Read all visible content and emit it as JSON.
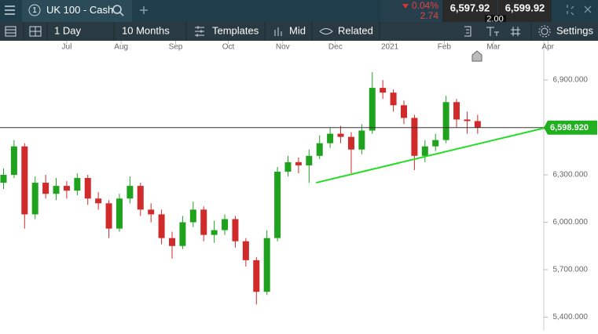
{
  "header": {
    "instrument_number": "1",
    "instrument": "UK 100 - Cash",
    "change_percent": "0.04%",
    "change_points": "2.74",
    "sell_price": "6,597.92",
    "spread": "2.00",
    "buy_price": "6,599.92"
  },
  "toolbar": {
    "interval": "1 Day",
    "range": "10 Months",
    "templates": "Templates",
    "price_type": "Mid",
    "related": "Related",
    "settings": "Settings"
  },
  "chart_data": {
    "type": "candlestick",
    "up_color": "#1fa31f",
    "down_color": "#d02a2a",
    "x": [
      -36,
      -30,
      -24,
      -18,
      -12,
      -6,
      0,
      6,
      12,
      18,
      24,
      30,
      36,
      42,
      48,
      54,
      60,
      66,
      72,
      78,
      84,
      90,
      96,
      102,
      108,
      114,
      120,
      126,
      132,
      138,
      144,
      150,
      156,
      162,
      168,
      174,
      180,
      186,
      192,
      198,
      204,
      210,
      216,
      222,
      228,
      234
    ],
    "open": [
      6250,
      6300,
      6480,
      6050,
      6250,
      6180,
      6230,
      6200,
      6280,
      6150,
      6120,
      5960,
      6150,
      6230,
      6080,
      6050,
      5900,
      5850,
      6000,
      6080,
      5920,
      5950,
      6020,
      5880,
      5760,
      5560,
      5900,
      6320,
      6380,
      6360,
      6420,
      6500,
      6560,
      6540,
      6460,
      6580,
      6850,
      6820,
      6740,
      6660,
      6420,
      6480,
      6520,
      6760,
      6650,
      6640
    ],
    "high": [
      6340,
      6520,
      6500,
      6290,
      6300,
      6280,
      6260,
      6310,
      6300,
      6190,
      6140,
      6180,
      6290,
      6250,
      6120,
      6080,
      5940,
      6040,
      6130,
      6100,
      6010,
      6050,
      6040,
      5900,
      5780,
      5950,
      6350,
      6420,
      6410,
      6460,
      6550,
      6600,
      6610,
      6570,
      6620,
      6950,
      6900,
      6840,
      6770,
      6680,
      6520,
      6560,
      6800,
      6780,
      6700,
      6680
    ],
    "low": [
      6210,
      6280,
      5960,
      6020,
      6150,
      6140,
      6150,
      6170,
      6110,
      6080,
      5900,
      5940,
      6120,
      6040,
      6000,
      5860,
      5770,
      5830,
      5970,
      5880,
      5870,
      5920,
      5840,
      5720,
      5480,
      5540,
      5880,
      6290,
      6310,
      6250,
      6400,
      6470,
      6500,
      6310,
      6430,
      6560,
      6780,
      6700,
      6620,
      6330,
      6380,
      6450,
      6500,
      6600,
      6560,
      6560
    ],
    "close": [
      6300,
      6480,
      6050,
      6250,
      6180,
      6230,
      6200,
      6280,
      6150,
      6120,
      5960,
      6150,
      6230,
      6080,
      6050,
      5900,
      5850,
      6000,
      6080,
      5920,
      5950,
      6020,
      5880,
      5760,
      5560,
      5900,
      6320,
      6380,
      6360,
      6420,
      6500,
      6560,
      6540,
      6460,
      6580,
      6850,
      6820,
      6740,
      6660,
      6420,
      6480,
      6520,
      6760,
      6650,
      6640,
      6598.92
    ],
    "xlim": [
      -38,
      273
    ],
    "xticks": [
      {
        "value": 0,
        "label": "Jul"
      },
      {
        "value": 31,
        "label": "Aug"
      },
      {
        "value": 62,
        "label": "Sep"
      },
      {
        "value": 92,
        "label": "Oct"
      },
      {
        "value": 123,
        "label": "Nov"
      },
      {
        "value": 153,
        "label": "Dec"
      },
      {
        "value": 184,
        "label": "2021"
      },
      {
        "value": 215,
        "label": "Feb"
      },
      {
        "value": 243,
        "label": "Mar"
      },
      {
        "value": 274,
        "label": "Apr"
      }
    ],
    "ylim": [
      5318,
      7148
    ],
    "yticks": [
      {
        "value": 5400,
        "label": "5,400.000"
      },
      {
        "value": 5700,
        "label": "5,700.000"
      },
      {
        "value": 6000,
        "label": "6,000.000"
      },
      {
        "value": 6300,
        "label": "6,300.000"
      },
      {
        "value": 6600,
        "label": "6,600.000"
      },
      {
        "value": 6900,
        "label": "6,900.000"
      }
    ],
    "last_price": {
      "value": 6598.92,
      "label": "6,598.920"
    },
    "last_price_color": "#20b020",
    "trendline": {
      "x": [
        142,
        273
      ],
      "y": [
        6250,
        6598.92
      ],
      "color": "#22dd22"
    }
  }
}
